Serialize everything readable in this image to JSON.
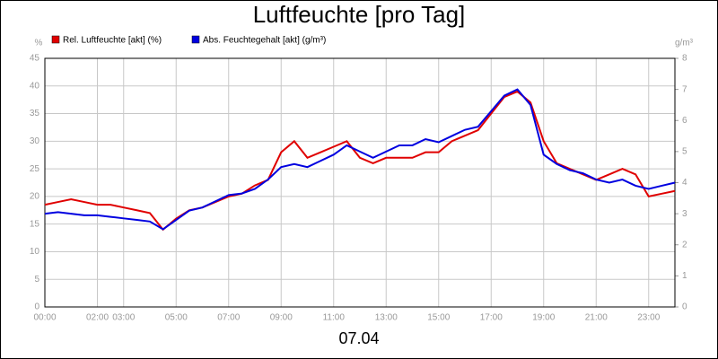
{
  "chart_data": {
    "type": "line",
    "title": "Luftfeuchte [pro Tag]",
    "x_label": "07.04",
    "y_label": "%",
    "y2_label": "g/m³",
    "xlim": [
      0,
      24
    ],
    "xticks": [
      {
        "value": 0,
        "label": "00:00"
      },
      {
        "value": 2,
        "label": "02:00"
      },
      {
        "value": 3,
        "label": "03:00"
      },
      {
        "value": 5,
        "label": "05:00"
      },
      {
        "value": 7,
        "label": "07:00"
      },
      {
        "value": 9,
        "label": "09:00"
      },
      {
        "value": 11,
        "label": "11:00"
      },
      {
        "value": 13,
        "label": "13:00"
      },
      {
        "value": 15,
        "label": "15:00"
      },
      {
        "value": 17,
        "label": "17:00"
      },
      {
        "value": 19,
        "label": "19:00"
      },
      {
        "value": 21,
        "label": "21:00"
      },
      {
        "value": 23,
        "label": "23:00"
      }
    ],
    "ylim": [
      0,
      45
    ],
    "yticks": [
      0,
      5,
      10,
      15,
      20,
      25,
      30,
      35,
      40,
      45
    ],
    "y2lim": [
      0,
      8
    ],
    "y2ticks": [
      0,
      1,
      2,
      3,
      4,
      5,
      6,
      7,
      8
    ],
    "grid": true,
    "x": [
      0,
      0.5,
      1,
      1.5,
      2,
      2.5,
      3,
      3.5,
      4,
      4.5,
      5,
      5.5,
      6,
      6.5,
      7,
      7.5,
      8,
      8.5,
      9,
      9.5,
      10,
      10.5,
      11,
      11.5,
      12,
      12.5,
      13,
      13.5,
      14,
      14.5,
      15,
      15.5,
      16,
      16.5,
      17,
      17.5,
      18,
      18.5,
      19,
      19.5,
      20,
      20.5,
      21,
      21.5,
      22,
      22.5,
      23,
      23.5,
      24
    ],
    "series": [
      {
        "name": "Rel. Luftfeuchte [akt] (%)",
        "color": "#e00000",
        "axis": "y",
        "values": [
          18.5,
          19,
          19.5,
          19,
          18.5,
          18.5,
          18,
          17.5,
          17,
          14,
          16,
          17.5,
          18,
          19,
          20,
          20.5,
          22,
          23,
          28,
          30,
          27,
          28,
          29,
          30,
          27,
          26,
          27,
          27,
          27,
          28,
          28,
          30,
          31,
          32,
          35,
          38,
          39,
          37,
          30,
          26,
          25,
          24,
          23,
          24,
          25,
          24,
          20,
          20.5,
          21
        ]
      },
      {
        "name": "Abs. Feuchtegehalt [akt] (g/m³)",
        "color": "#0000e0",
        "axis": "y2",
        "values": [
          3.0,
          3.05,
          3.0,
          2.95,
          2.95,
          2.9,
          2.85,
          2.8,
          2.75,
          2.5,
          2.8,
          3.1,
          3.2,
          3.4,
          3.6,
          3.65,
          3.8,
          4.1,
          4.5,
          4.6,
          4.5,
          4.7,
          4.9,
          5.2,
          5.0,
          4.8,
          5.0,
          5.2,
          5.2,
          5.4,
          5.3,
          5.5,
          5.7,
          5.8,
          6.3,
          6.8,
          7.0,
          6.5,
          4.9,
          4.6,
          4.4,
          4.3,
          4.1,
          4.0,
          4.1,
          3.9,
          3.8,
          3.9,
          4.0
        ]
      }
    ]
  }
}
